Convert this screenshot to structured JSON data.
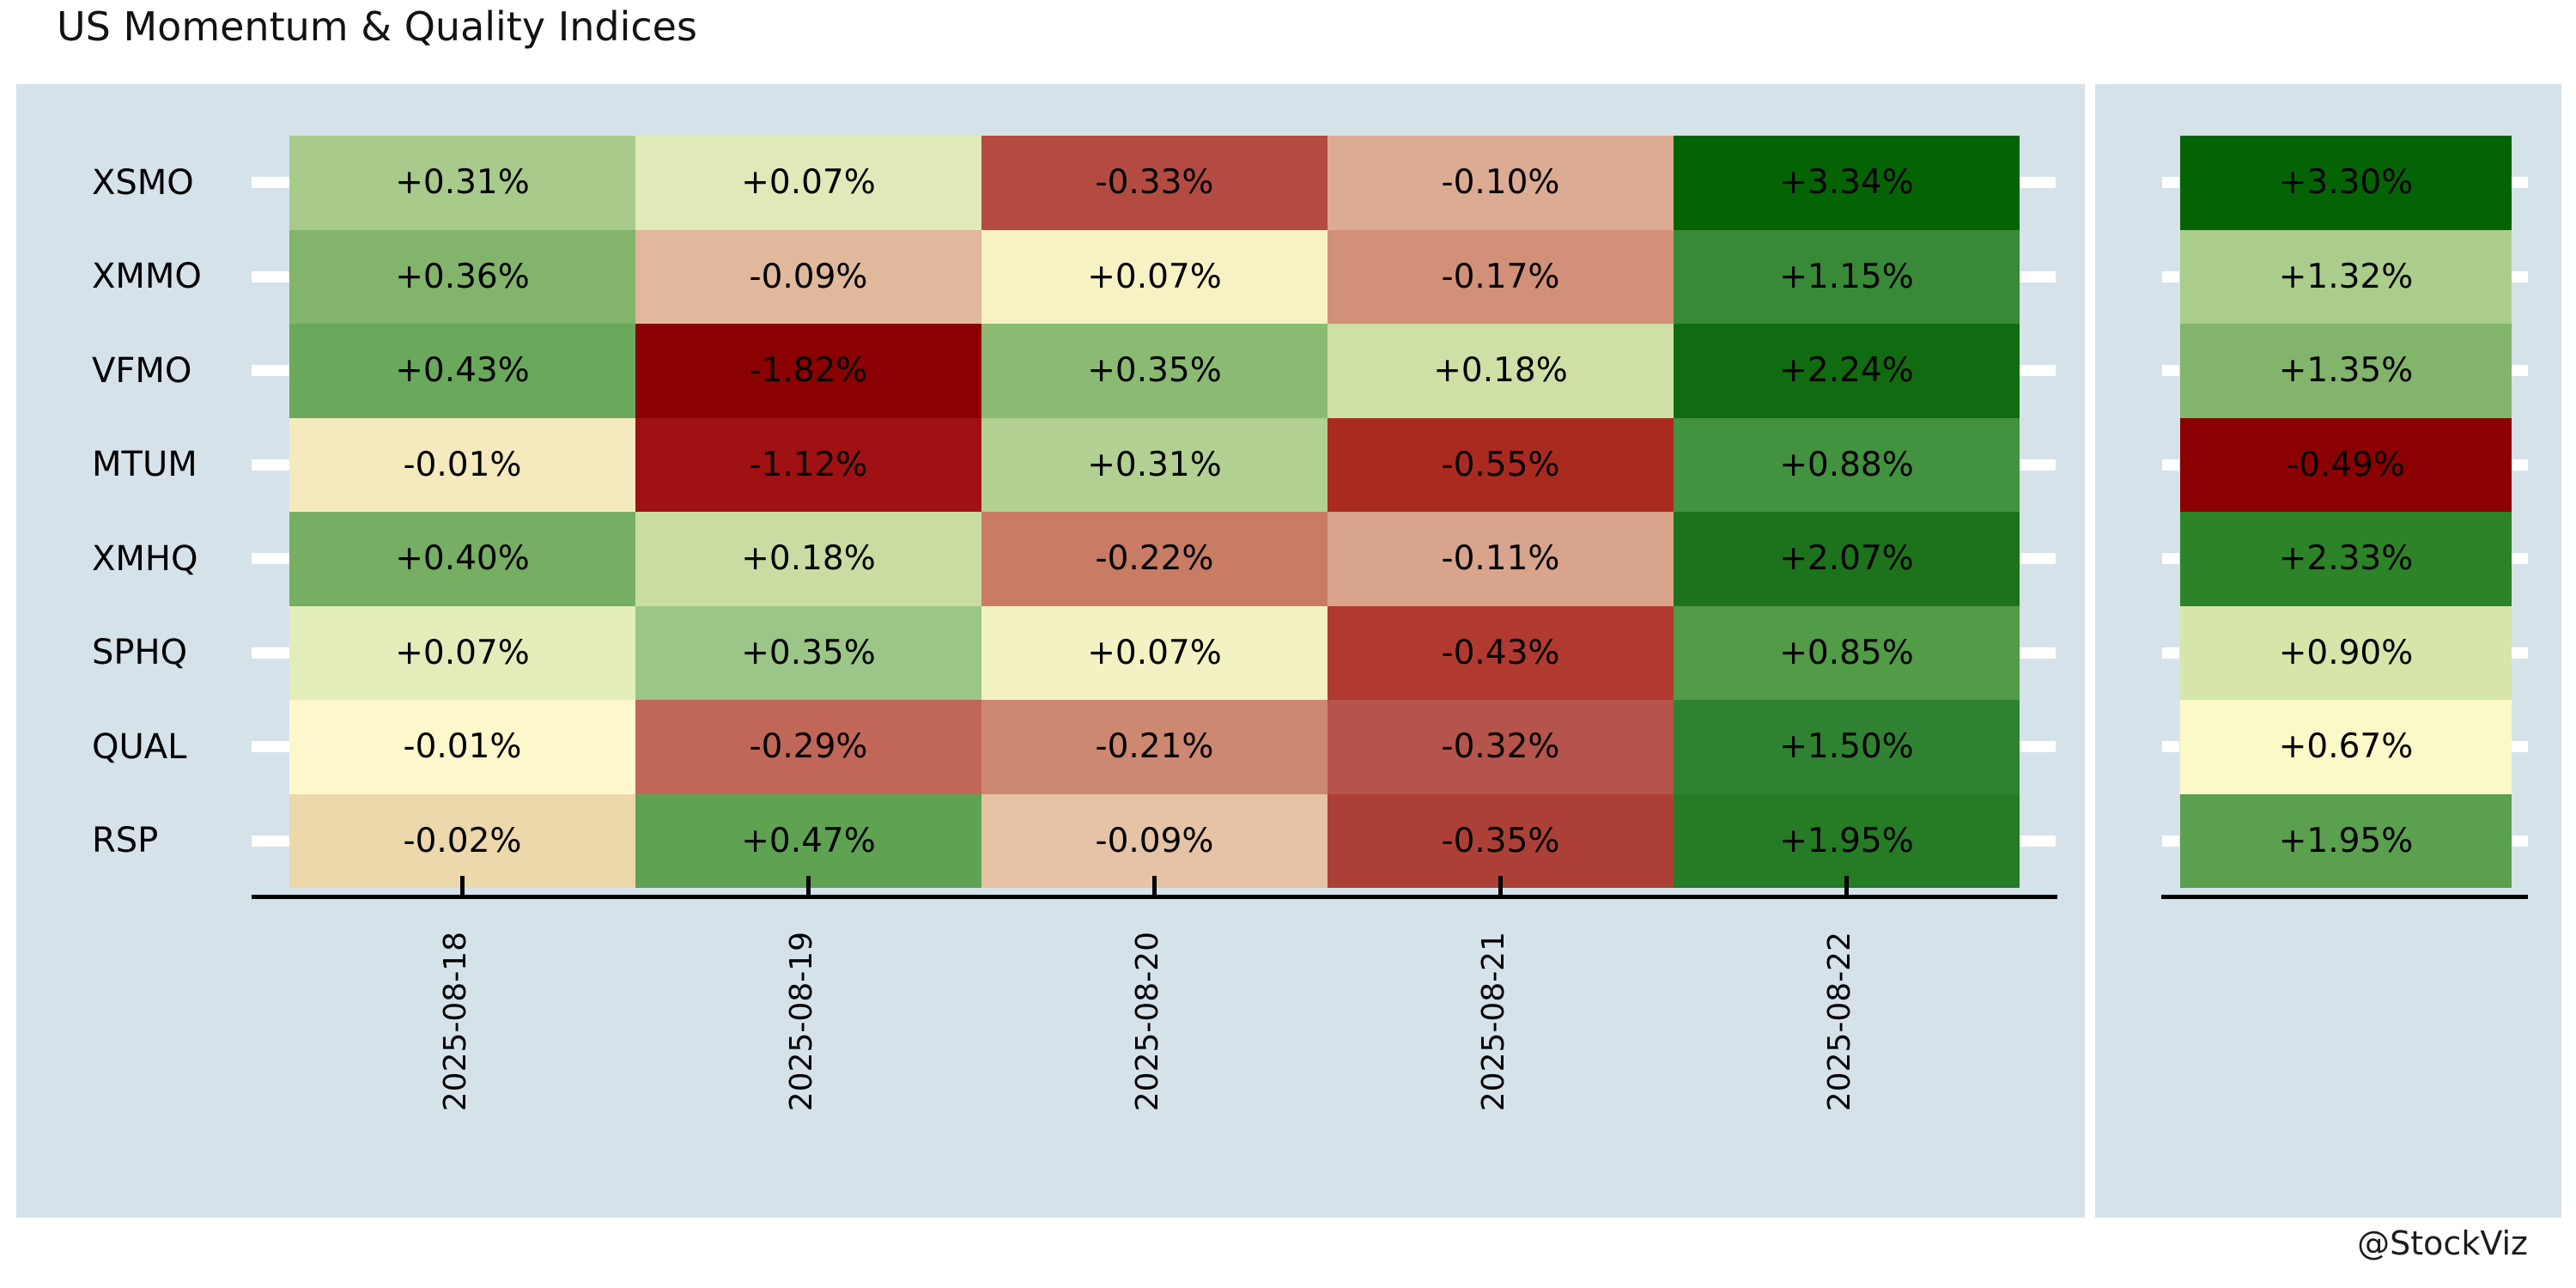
{
  "page": {
    "title": "US Momentum & Quality Indices",
    "watermark": "@StockViz"
  },
  "chart_data": {
    "type": "heatmap",
    "title": "US Momentum & Quality Indices",
    "unit": "%",
    "legend": null,
    "grid": false,
    "x_axis": {
      "tick_labels": [
        "2025-08-18",
        "2025-08-19",
        "2025-08-20",
        "2025-08-21",
        "2025-08-22"
      ],
      "label_rotation": "vertical"
    },
    "y_axis": {
      "tick_labels": [
        "XSMO",
        "XMMO",
        "VFMO",
        "MTUM",
        "XMHQ",
        "SPHQ",
        "QUAL",
        "RSP"
      ]
    },
    "summary_column": {
      "position": "right",
      "header": ""
    },
    "columns": [
      "2025-08-18",
      "2025-08-19",
      "2025-08-20",
      "2025-08-21",
      "2025-08-22"
    ],
    "rows": [
      {
        "name": "XSMO",
        "values": [
          0.31,
          0.07,
          -0.33,
          -0.1,
          3.34
        ],
        "labels": [
          "+0.31%",
          "+0.07%",
          "-0.33%",
          "-0.10%",
          "+3.34%"
        ],
        "colors": [
          "#a8ca8b",
          "#dfeab8",
          "#b44b41",
          "#dcab93",
          "#046404"
        ],
        "summary_value": 3.3,
        "summary_label": "+3.30%",
        "summary_color": "#046404"
      },
      {
        "name": "XMMO",
        "values": [
          0.36,
          -0.09,
          0.07,
          -0.17,
          1.15
        ],
        "labels": [
          "+0.36%",
          "-0.09%",
          "+0.07%",
          "-0.17%",
          "+1.15%"
        ],
        "colors": [
          "#82b46c",
          "#e0b89c",
          "#f6f2c4",
          "#d29078",
          "#388a38"
        ],
        "summary_value": 1.32,
        "summary_label": "+1.32%",
        "summary_color": "#abcd8c"
      },
      {
        "name": "VFMO",
        "values": [
          0.43,
          -1.82,
          0.35,
          0.18,
          2.24
        ],
        "labels": [
          "+0.43%",
          "-1.82%",
          "+0.35%",
          "+0.18%",
          "+2.24%"
        ],
        "colors": [
          "#6aa85c",
          "#8b0101",
          "#8bbb72",
          "#cfe0a6",
          "#116b10"
        ],
        "summary_value": 1.35,
        "summary_label": "+1.35%",
        "summary_color": "#82b46c"
      },
      {
        "name": "MTUM",
        "values": [
          -0.01,
          -1.12,
          0.31,
          -0.55,
          0.88
        ],
        "labels": [
          "-0.01%",
          "-1.12%",
          "+0.31%",
          "-0.55%",
          "+0.88%"
        ],
        "colors": [
          "#f4eabe",
          "#a01113",
          "#b2d092",
          "#aa2a20",
          "#43923f"
        ],
        "summary_value": -0.49,
        "summary_label": "-0.49%",
        "summary_color": "#8b0101"
      },
      {
        "name": "XMHQ",
        "values": [
          0.4,
          0.18,
          -0.22,
          -0.11,
          2.07
        ],
        "labels": [
          "+0.40%",
          "+0.18%",
          "-0.22%",
          "-0.11%",
          "+2.07%"
        ],
        "colors": [
          "#76ae63",
          "#c9dda2",
          "#c97c64",
          "#d8a48c",
          "#1d731b"
        ],
        "summary_value": 2.33,
        "summary_label": "+2.33%",
        "summary_color": "#2d8327"
      },
      {
        "name": "SPHQ",
        "values": [
          0.07,
          0.35,
          0.07,
          -0.43,
          0.85
        ],
        "labels": [
          "+0.07%",
          "+0.35%",
          "+0.07%",
          "-0.43%",
          "+0.85%"
        ],
        "colors": [
          "#e3edba",
          "#9cc687",
          "#f2f2c3",
          "#b03a30",
          "#529b47"
        ],
        "summary_value": 0.9,
        "summary_label": "+0.90%",
        "summary_color": "#d6e5aa"
      },
      {
        "name": "QUAL",
        "values": [
          -0.01,
          -0.29,
          -0.21,
          -0.32,
          1.5
        ],
        "labels": [
          "-0.01%",
          "-0.29%",
          "-0.21%",
          "-0.32%",
          "+1.50%"
        ],
        "colors": [
          "#fdf8cb",
          "#c16758",
          "#cd8871",
          "#b5544a",
          "#2f8231"
        ],
        "summary_value": 0.67,
        "summary_label": "+0.67%",
        "summary_color": "#fcf9c8"
      },
      {
        "name": "RSP",
        "values": [
          -0.02,
          0.47,
          -0.09,
          -0.35,
          1.95
        ],
        "labels": [
          "-0.02%",
          "+0.47%",
          "-0.09%",
          "-0.35%",
          "+1.95%"
        ],
        "colors": [
          "#ecd8ab",
          "#5ea252",
          "#e5c3a4",
          "#ad4036",
          "#267b25"
        ],
        "summary_value": 1.95,
        "summary_label": "+1.95%",
        "summary_color": "#5aa04e"
      }
    ],
    "style": {
      "panel_background": "#d6e2ea",
      "figure_background": "#ffffff",
      "axis_color": "#000000",
      "row_tick_color": "#ffffff",
      "text_color": "#000000",
      "negative_extreme": "#8b0101",
      "center_color": "#fdf9cb",
      "positive_extreme": "#046404"
    }
  }
}
